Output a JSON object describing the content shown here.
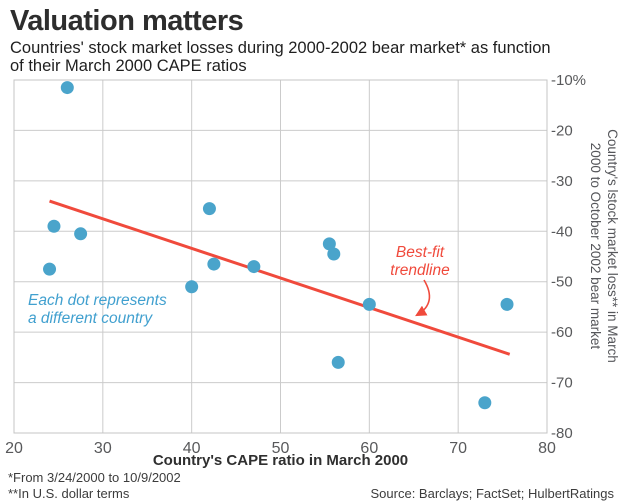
{
  "header": {
    "title": "Valuation matters",
    "subtitle_line1": "Countries' stock market losses during 2000-2002 bear market* as function",
    "subtitle_line2": "of their March 2000 CAPE ratios"
  },
  "chart_data": {
    "type": "scatter",
    "title": "Valuation matters",
    "xlabel": "Country's CAPE ratio in March 2000",
    "ylabel_line1": "Country's lstock market loss** in March",
    "ylabel_line2": "2000 to October 2002 bear market",
    "xlim": [
      20,
      80
    ],
    "ylim": [
      -80,
      -10
    ],
    "x_ticks": [
      20,
      30,
      40,
      50,
      60,
      70,
      80
    ],
    "y_tick_values": [
      -10,
      -20,
      -30,
      -40,
      -50,
      -60,
      -70,
      -80
    ],
    "y_tick_labels": [
      "-10%",
      "-20",
      "-30",
      "-40",
      "-50",
      "-60",
      "-70",
      "-80"
    ],
    "grid": true,
    "points": [
      {
        "x": 26,
        "y": -11.5
      },
      {
        "x": 24.5,
        "y": -39
      },
      {
        "x": 27.5,
        "y": -40.5
      },
      {
        "x": 24,
        "y": -47.5
      },
      {
        "x": 40,
        "y": -51
      },
      {
        "x": 42,
        "y": -35.5
      },
      {
        "x": 42.5,
        "y": -46.5
      },
      {
        "x": 47,
        "y": -47
      },
      {
        "x": 55.5,
        "y": -42.5
      },
      {
        "x": 56,
        "y": -44.5
      },
      {
        "x": 56.5,
        "y": -66
      },
      {
        "x": 60,
        "y": -54.5
      },
      {
        "x": 73,
        "y": -74
      },
      {
        "x": 75.5,
        "y": -54.5
      }
    ],
    "trendline": {
      "x1": 24,
      "y1": -34,
      "x2": 75.8,
      "y2": -64.4
    },
    "colors": {
      "dot": "#4aa4cb",
      "trendline": "#f04a3c",
      "annotation_blue": "#41a0cf",
      "grid": "#cbcbcb",
      "axis_text": "#58595b"
    }
  },
  "annotations": {
    "dots_note_line1": "Each dot represents",
    "dots_note_line2": "a different country",
    "trend_note_line1": "Best-fit",
    "trend_note_line2": "trendline"
  },
  "footer": {
    "footnote1": "*From 3/24/2000 to 10/9/2002",
    "footnote2": "**In U.S. dollar terms",
    "source": "Source: Barclays; FactSet; HulbertRatings"
  }
}
